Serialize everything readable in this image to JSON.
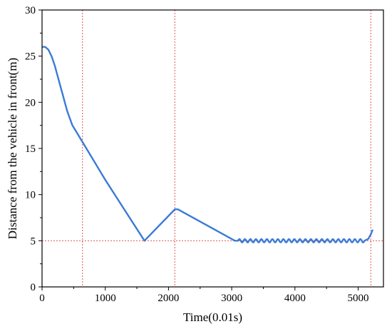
{
  "chart_data": {
    "type": "line",
    "title": "",
    "xlabel": "Time(0.01s)",
    "ylabel": "Distance from the vehicle in front(m)",
    "xlim": [
      0,
      5400
    ],
    "ylim": [
      0,
      30
    ],
    "x_ticks": [
      "0",
      "1000",
      "2000",
      "3000",
      "4000",
      "5000"
    ],
    "y_ticks": [
      "0",
      "5",
      "10",
      "15",
      "20",
      "25",
      "30"
    ],
    "grid": false,
    "series": [
      {
        "color": "#3a7bd5",
        "points": [
          [
            0,
            26.0
          ],
          [
            50,
            26.0
          ],
          [
            100,
            25.7
          ],
          [
            150,
            25.0
          ],
          [
            200,
            24.0
          ],
          [
            300,
            21.5
          ],
          [
            400,
            19.0
          ],
          [
            480,
            17.5
          ],
          [
            640,
            15.7
          ],
          [
            1000,
            11.6
          ],
          [
            1300,
            8.4
          ],
          [
            1620,
            5.0
          ],
          [
            2100,
            8.4
          ],
          [
            2150,
            8.4
          ],
          [
            2600,
            6.7
          ],
          [
            3050,
            5.0
          ],
          [
            3100,
            5.0
          ],
          [
            3350,
            5.0
          ],
          [
            3800,
            5.0
          ],
          [
            4200,
            5.0
          ],
          [
            4600,
            5.0
          ],
          [
            5000,
            5.0
          ],
          [
            5100,
            5.0
          ],
          [
            5160,
            5.2
          ],
          [
            5200,
            5.7
          ],
          [
            5230,
            6.2
          ]
        ],
        "oscillation": {
          "x_start": 3100,
          "x_end": 5100,
          "amplitude": 0.18,
          "cycles": 23
        }
      }
    ],
    "reference_lines": {
      "color": "#e05555",
      "vertical_x": [
        640,
        2100,
        5200
      ],
      "horizontal_y": [
        5
      ]
    }
  }
}
